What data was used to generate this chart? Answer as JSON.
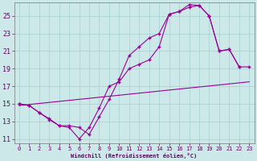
{
  "xlabel": "Windchill (Refroidissement éolien,°C)",
  "background_color": "#cce8e8",
  "grid_color": "#aad4d4",
  "line_color": "#990099",
  "xlim": [
    -0.5,
    23.5
  ],
  "ylim": [
    10.5,
    26.5
  ],
  "yticks": [
    11,
    13,
    15,
    17,
    19,
    21,
    23,
    25
  ],
  "xticks": [
    0,
    1,
    2,
    3,
    4,
    5,
    6,
    7,
    8,
    9,
    10,
    11,
    12,
    13,
    14,
    15,
    16,
    17,
    18,
    19,
    20,
    21,
    22,
    23
  ],
  "series1_x": [
    0,
    1,
    2,
    3,
    4,
    5,
    6,
    7,
    8,
    9,
    10,
    11,
    12,
    13,
    14,
    15,
    16,
    17,
    18,
    19,
    20,
    21,
    22,
    23
  ],
  "series1_y": [
    15.0,
    14.8,
    14.0,
    13.2,
    12.5,
    12.3,
    11.0,
    12.3,
    14.5,
    17.0,
    17.5,
    19.0,
    19.5,
    20.0,
    21.5,
    25.2,
    25.5,
    26.0,
    26.2,
    25.0,
    21.0,
    21.2,
    19.2,
    19.2
  ],
  "series2_x": [
    0,
    1,
    2,
    3,
    4,
    5,
    6,
    7,
    8,
    9,
    10,
    11,
    12,
    13,
    14,
    15,
    16,
    17,
    18,
    19,
    20,
    21,
    22
  ],
  "series2_y": [
    15.0,
    14.8,
    14.0,
    13.3,
    12.5,
    12.5,
    12.3,
    11.5,
    13.5,
    15.5,
    17.8,
    20.5,
    21.5,
    22.5,
    23.0,
    25.2,
    25.5,
    26.3,
    26.2,
    25.0,
    21.0,
    21.2,
    19.2
  ],
  "series3_x": [
    0,
    23
  ],
  "series3_y": [
    14.8,
    17.5
  ]
}
